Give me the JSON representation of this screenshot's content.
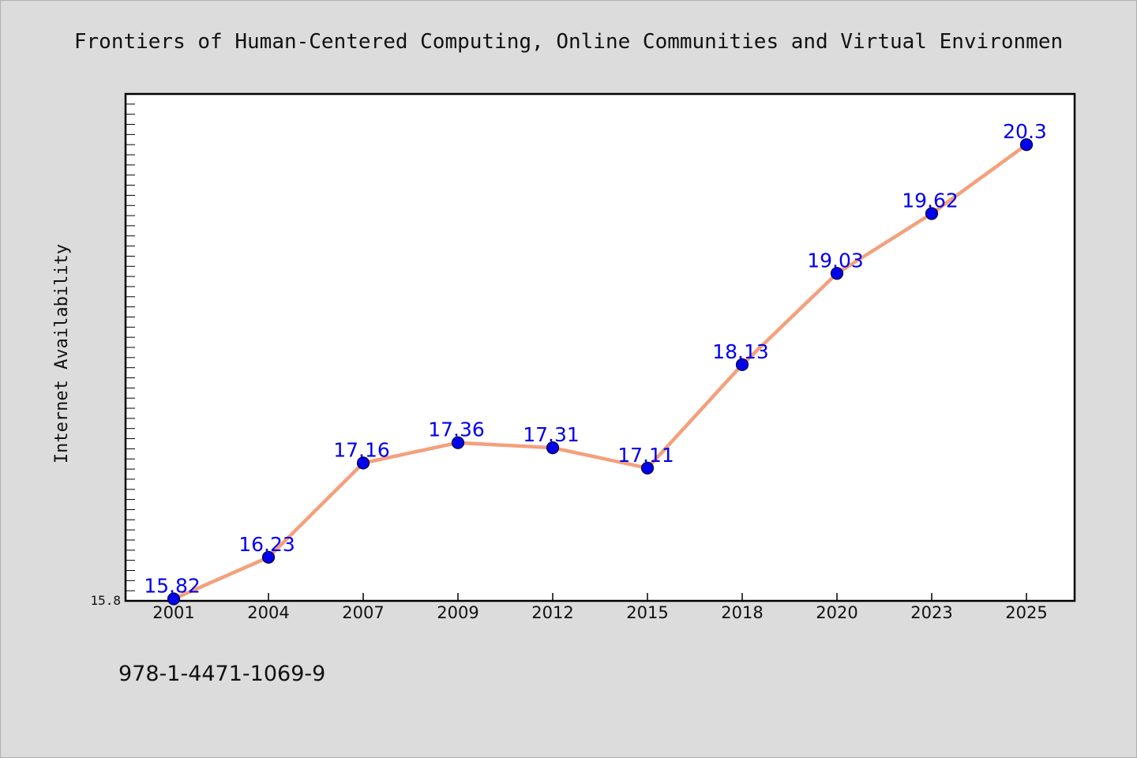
{
  "chart_data": {
    "type": "line",
    "title": "Frontiers of Human-Centered Computing, Online Communities and Virtual Environmen",
    "xlabel": "",
    "ylabel": "Internet Availability",
    "categories": [
      "2001",
      "2004",
      "2007",
      "2009",
      "2012",
      "2015",
      "2018",
      "2020",
      "2023",
      "2025"
    ],
    "series": [
      {
        "values": [
          15.82,
          16.23,
          17.16,
          17.36,
          17.31,
          17.11,
          18.13,
          19.03,
          19.62,
          20.3
        ]
      }
    ],
    "ylim": [
      15.8,
      20.8
    ],
    "yticks": [
      "15.8"
    ],
    "grid": false,
    "legend": "none",
    "colors": {
      "line": "#f4a07c",
      "marker": "#0000ee",
      "label": "#0000ee"
    }
  },
  "footer": {
    "isbn": "978-1-4471-1069-9"
  }
}
